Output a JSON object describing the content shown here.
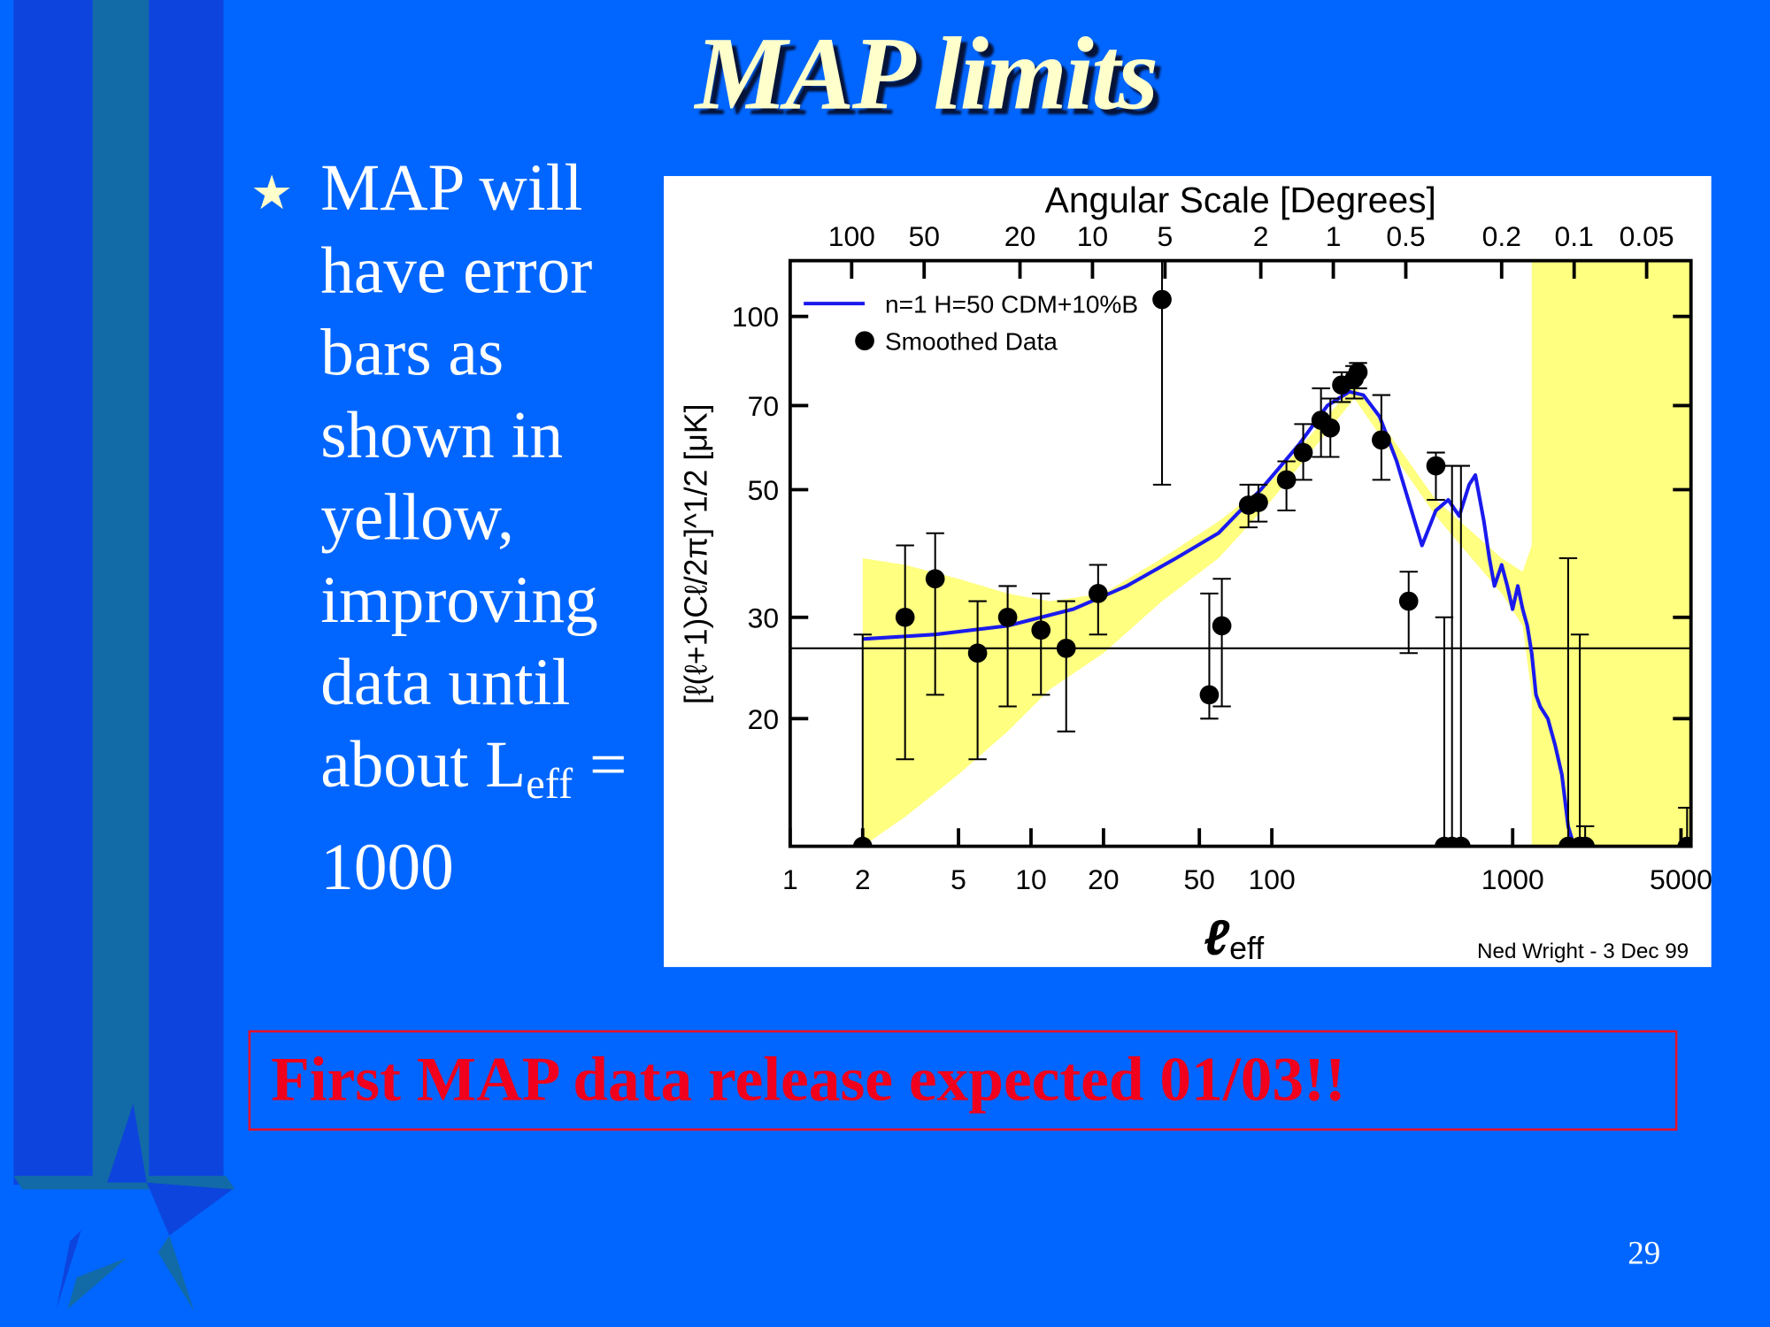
{
  "slide": {
    "title": "MAP limits",
    "bullet": {
      "text": "MAP  will have error bars as shown in yellow, improving data until about L",
      "subscript": "eff",
      "suffix": " = 1000"
    },
    "callout": "First MAP data release expected 01/03!!",
    "page_number": "29",
    "colors": {
      "background": "#0066ff",
      "title": "#ffffcc",
      "callout": "#f0001c"
    }
  },
  "chart_data": {
    "type": "scatter",
    "title": "Angular Scale [Degrees]",
    "xlabel": "ℓ",
    "xlabel_sub": "eff",
    "ylabel": "[ℓ(ℓ+1)Cℓ/2π]^1/2 [μK]",
    "credit": "Ned Wright - 3 Dec 99",
    "x_scale": "log",
    "y_scale": "log",
    "xlim": [
      1,
      5500
    ],
    "ylim": [
      12,
      125
    ],
    "grid": false,
    "legend_position": "top-left",
    "x_ticks": [
      1,
      2,
      5,
      10,
      20,
      50,
      100,
      1000,
      5000
    ],
    "y_ticks": [
      20,
      30,
      50,
      70,
      100
    ],
    "top_axis_ticks": [
      "100",
      "50",
      "20",
      "10",
      "5",
      "2",
      "1",
      "0.5",
      "0.2",
      "0.1",
      "0.05"
    ],
    "top_axis_degrees": [
      100,
      50,
      20,
      10,
      5,
      2,
      1,
      0.5,
      0.2,
      0.1,
      0.05
    ],
    "reference_line_y": 26.5,
    "series": [
      {
        "name": "n=1 H=50 CDM+10%B",
        "kind": "line",
        "color": "#1a1aee",
        "x": [
          2,
          4,
          8,
          15,
          25,
          40,
          60,
          90,
          130,
          170,
          210,
          240,
          280,
          330,
          380,
          420,
          480,
          540,
          600,
          660,
          700,
          760,
          800,
          840,
          900,
          950,
          1000,
          1050,
          1100,
          1150,
          1200,
          1250,
          1300,
          1400,
          1500,
          1600,
          1700,
          1800,
          1900,
          2000,
          2100
        ],
        "y": [
          27.5,
          28.0,
          29.0,
          31.0,
          34.0,
          38.0,
          42.0,
          50.0,
          60.0,
          70.0,
          74.0,
          73.0,
          67.0,
          56.0,
          46.0,
          40.0,
          46.0,
          48.0,
          45.0,
          51.0,
          53.0,
          44.0,
          38.0,
          34.0,
          37.0,
          34.0,
          31.0,
          34.0,
          31.0,
          29.0,
          26.0,
          22.0,
          21.0,
          20.0,
          18.0,
          16.0,
          13.0,
          12.0,
          11.5,
          11.0,
          11.0
        ]
      },
      {
        "name": "Smoothed Data",
        "kind": "points",
        "color": "#000000",
        "points": [
          {
            "x": 2,
            "y": 12,
            "lo": 12,
            "hi": 28
          },
          {
            "x": 3,
            "y": 30,
            "lo": 17,
            "hi": 40
          },
          {
            "x": 4,
            "y": 35,
            "lo": 22,
            "hi": 42
          },
          {
            "x": 6,
            "y": 26,
            "lo": 17,
            "hi": 32
          },
          {
            "x": 8,
            "y": 30,
            "lo": 21,
            "hi": 34
          },
          {
            "x": 11,
            "y": 28.5,
            "lo": 22,
            "hi": 33
          },
          {
            "x": 14,
            "y": 26.5,
            "lo": 19,
            "hi": 32
          },
          {
            "x": 19,
            "y": 33,
            "lo": 28,
            "hi": 37
          },
          {
            "x": 35,
            "y": 107,
            "lo": 51,
            "hi": 125
          },
          {
            "x": 55,
            "y": 22,
            "lo": 20,
            "hi": 33
          },
          {
            "x": 62,
            "y": 29,
            "lo": 21,
            "hi": 35
          },
          {
            "x": 80,
            "y": 47,
            "lo": 43,
            "hi": 51
          },
          {
            "x": 88,
            "y": 47.5,
            "lo": 44,
            "hi": 51
          },
          {
            "x": 115,
            "y": 52,
            "lo": 46,
            "hi": 56
          },
          {
            "x": 135,
            "y": 58,
            "lo": 52,
            "hi": 65
          },
          {
            "x": 160,
            "y": 66,
            "lo": 57,
            "hi": 75
          },
          {
            "x": 175,
            "y": 64,
            "lo": 57,
            "hi": 72
          },
          {
            "x": 195,
            "y": 76,
            "lo": 71,
            "hi": 80
          },
          {
            "x": 220,
            "y": 78,
            "lo": 72,
            "hi": 82
          },
          {
            "x": 228,
            "y": 80,
            "lo": 75,
            "hi": 83
          },
          {
            "x": 285,
            "y": 61,
            "lo": 52,
            "hi": 73
          },
          {
            "x": 370,
            "y": 32,
            "lo": 26,
            "hi": 36
          },
          {
            "x": 480,
            "y": 55,
            "lo": 48,
            "hi": 58
          },
          {
            "x": 520,
            "y": 12,
            "lo": 12,
            "hi": 30
          },
          {
            "x": 560,
            "y": 12,
            "lo": 12,
            "hi": 55
          },
          {
            "x": 610,
            "y": 12,
            "lo": 12,
            "hi": 55
          },
          {
            "x": 1700,
            "y": 12,
            "lo": 12,
            "hi": 38
          },
          {
            "x": 1900,
            "y": 12,
            "lo": 12,
            "hi": 28
          },
          {
            "x": 2000,
            "y": 12,
            "lo": 12,
            "hi": 13
          },
          {
            "x": 5300,
            "y": 12,
            "lo": 12,
            "hi": 14
          }
        ]
      }
    ],
    "error_band": {
      "color": "#ffff80",
      "segments": [
        {
          "x": [
            2,
            3,
            5,
            8,
            12,
            20,
            35,
            60,
            100
          ],
          "upper": [
            38,
            37,
            35,
            33,
            32,
            33,
            38,
            44,
            52
          ],
          "lower": [
            12,
            13.5,
            16,
            19,
            22.5,
            26,
            32,
            38,
            48
          ]
        },
        {
          "x": [
            1200,
            1300,
            1500,
            1800,
            2200,
            2800,
            3500,
            4500,
            5500
          ],
          "upper": [
            125,
            125,
            125,
            125,
            125,
            125,
            125,
            125,
            125
          ],
          "lower": [
            12,
            12,
            12,
            12,
            12,
            12,
            12,
            12,
            12
          ]
        }
      ],
      "mid_band_top": [
        [
          100,
          52
        ],
        [
          220,
          76
        ],
        [
          480,
          48
        ],
        [
          900,
          38
        ],
        [
          1100,
          36
        ],
        [
          1200,
          40
        ],
        [
          1300,
          58
        ],
        [
          1450,
          125
        ]
      ],
      "mid_band_bottom": [
        [
          100,
          48
        ],
        [
          220,
          72
        ],
        [
          480,
          45
        ],
        [
          900,
          33
        ],
        [
          1100,
          29
        ],
        [
          1200,
          22
        ]
      ]
    }
  }
}
